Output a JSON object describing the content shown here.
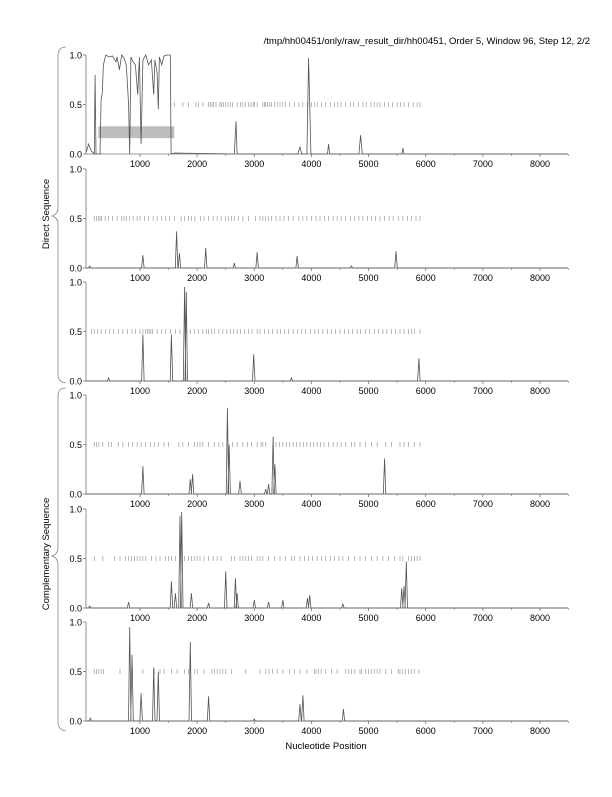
{
  "chart_data": {
    "type": "line",
    "title": "/tmp/hh00451/only/raw_result_dir/hh00451, Order 5, Window 96, Step 12, 2/2",
    "xlabel": "Nucleotide Position",
    "group_labels": [
      "Direct Sequence",
      "Complementary Sequence"
    ],
    "xlim": [
      55,
      8490
    ],
    "ylim": [
      0,
      1
    ],
    "x_ticks": [
      1000,
      2000,
      3000,
      4000,
      5000,
      6000,
      7000,
      8000
    ],
    "x_tick_labels": [
      "1000",
      "2000",
      "3000",
      "4000",
      "5000",
      "6000",
      "7000",
      "8000"
    ],
    "y_ticks": [
      0,
      0.5,
      1
    ],
    "y_tick_labels": [
      "0.0",
      "0.5",
      "1.0"
    ],
    "colors": {
      "line": "#555555",
      "ticks": "#999999",
      "region": "#bdbdbd",
      "axis": "#777777"
    },
    "panels": [
      {
        "name": "direct-frame-1",
        "curve": [
          [
            60,
            0.02
          ],
          [
            100,
            0.1
          ],
          [
            150,
            0.03
          ],
          [
            200,
            0.0
          ],
          [
            215,
            0.8
          ],
          [
            230,
            0.0
          ],
          [
            300,
            0.0
          ],
          [
            320,
            0.55
          ],
          [
            340,
            0.62
          ],
          [
            360,
            0.9
          ],
          [
            400,
            1.0
          ],
          [
            460,
            0.98
          ],
          [
            520,
            0.99
          ],
          [
            580,
            0.93
          ],
          [
            600,
            0.98
          ],
          [
            640,
            0.85
          ],
          [
            680,
            1.0
          ],
          [
            720,
            0.97
          ],
          [
            760,
            0.9
          ],
          [
            800,
            0.5
          ],
          [
            820,
            0.0
          ],
          [
            840,
            0.98
          ],
          [
            880,
            0.93
          ],
          [
            920,
            0.9
          ],
          [
            960,
            0.6
          ],
          [
            990,
            0.98
          ],
          [
            1020,
            0.1
          ],
          [
            1050,
            0.95
          ],
          [
            1100,
            1.0
          ],
          [
            1150,
            0.9
          ],
          [
            1200,
            0.95
          ],
          [
            1240,
            0.6
          ],
          [
            1260,
            0.95
          ],
          [
            1300,
            0.82
          ],
          [
            1320,
            0.45
          ],
          [
            1340,
            0.98
          ],
          [
            1380,
            0.9
          ],
          [
            1420,
            0.99
          ],
          [
            1480,
            1.0
          ],
          [
            1530,
            1.0
          ],
          [
            1545,
            0.0
          ],
          [
            1600,
            0.01
          ],
          [
            2650,
            0.0
          ],
          [
            2680,
            0.33
          ],
          [
            2700,
            0.0
          ],
          [
            3760,
            0.0
          ],
          [
            3800,
            0.07
          ],
          [
            3830,
            0.0
          ],
          [
            3920,
            0.0
          ],
          [
            3950,
            0.97
          ],
          [
            3990,
            0.0
          ],
          [
            4280,
            0.0
          ],
          [
            4300,
            0.1
          ],
          [
            4320,
            0.0
          ],
          [
            4830,
            0.0
          ],
          [
            4860,
            0.19
          ],
          [
            4890,
            0.0
          ],
          [
            5580,
            0.0
          ],
          [
            5600,
            0.06
          ],
          [
            5620,
            0.0
          ],
          [
            8490,
            0.0
          ]
        ],
        "peaks": [],
        "region": [
          270,
          1600,
          0.16,
          0.28
        ],
        "ticks": [
          1600,
          1750,
          1850,
          1980,
          2020,
          2100,
          2200,
          2230,
          2260,
          2290,
          2330,
          2400,
          2430,
          2460,
          2500,
          2540,
          2580,
          2620,
          2700,
          2760,
          2800,
          2840,
          2900,
          2940,
          2980,
          3000,
          3050,
          3150,
          3180,
          3200,
          3230,
          3270,
          3300,
          3350,
          3400,
          3450,
          3500,
          3550,
          3620,
          3700,
          3780,
          3850,
          3930,
          4000,
          4050,
          4100,
          4180,
          4250,
          4330,
          4400,
          4460,
          4520,
          4600,
          4680,
          4740,
          4820,
          4900,
          4960,
          5040,
          5100,
          5150,
          5200,
          5280,
          5350,
          5420,
          5500,
          5560,
          5620,
          5700,
          5780,
          5850,
          5900
        ]
      },
      {
        "name": "direct-frame-2",
        "curve": [],
        "peaks": [
          [
            120,
            0.02
          ],
          [
            1050,
            0.13
          ],
          [
            1640,
            0.37
          ],
          [
            1690,
            0.15
          ],
          [
            2150,
            0.2
          ],
          [
            2650,
            0.05
          ],
          [
            3050,
            0.16
          ],
          [
            3750,
            0.12
          ],
          [
            4700,
            0.02
          ],
          [
            5480,
            0.17
          ]
        ],
        "ticks": [
          200,
          240,
          270,
          300,
          330,
          390,
          450,
          520,
          600,
          680,
          720,
          760,
          820,
          880,
          950,
          1000,
          1080,
          1150,
          1230,
          1300,
          1380,
          1450,
          1520,
          1600,
          1720,
          1780,
          1850,
          1900,
          1960,
          2060,
          2120,
          2200,
          2280,
          2350,
          2420,
          2500,
          2550,
          2600,
          2650,
          2720,
          2800,
          2900,
          3020,
          3100,
          3150,
          3200,
          3250,
          3300,
          3380,
          3450,
          3520,
          3600,
          3680,
          3780,
          3850,
          3920,
          4000,
          4080,
          4150,
          4230,
          4300,
          4380,
          4450,
          4520,
          4600,
          4680,
          4750,
          4830,
          4900,
          4980,
          5050,
          5120,
          5200,
          5280,
          5360,
          5430,
          5520,
          5600,
          5680,
          5750,
          5830,
          5900
        ]
      },
      {
        "name": "direct-frame-3",
        "curve": [],
        "peaks": [
          [
            450,
            0.03
          ],
          [
            1050,
            0.47
          ],
          [
            1550,
            0.47
          ],
          [
            1780,
            0.95
          ],
          [
            1810,
            0.9
          ],
          [
            2990,
            0.27
          ],
          [
            3650,
            0.03
          ],
          [
            5880,
            0.23
          ]
        ],
        "ticks": [
          150,
          200,
          260,
          320,
          400,
          470,
          540,
          620,
          700,
          780,
          860,
          920,
          1000,
          1050,
          1100,
          1130,
          1160,
          1190,
          1220,
          1300,
          1380,
          1450,
          1530,
          1620,
          1700,
          1800,
          1880,
          1950,
          2020,
          2100,
          2160,
          2200,
          2250,
          2300,
          2380,
          2450,
          2520,
          2580,
          2640,
          2700,
          2760,
          2830,
          2900,
          2960,
          3050,
          3100,
          3180,
          3250,
          3320,
          3400,
          3460,
          3530,
          3600,
          3680,
          3760,
          3830,
          3900,
          3980,
          4060,
          4120,
          4200,
          4280,
          4350,
          4420,
          4500,
          4580,
          4650,
          4720,
          4800,
          4860,
          4950,
          5020,
          5100,
          5170,
          5250,
          5320,
          5400,
          5470,
          5550,
          5620,
          5700,
          5750,
          5800,
          5900
        ]
      },
      {
        "name": "complementary-frame-1",
        "curve": [],
        "peaks": [
          [
            1050,
            0.28
          ],
          [
            1880,
            0.15
          ],
          [
            1920,
            0.2
          ],
          [
            2530,
            0.87
          ],
          [
            2560,
            0.5
          ],
          [
            2750,
            0.13
          ],
          [
            3200,
            0.05
          ],
          [
            3250,
            0.1
          ],
          [
            3330,
            0.58
          ],
          [
            3360,
            0.3
          ],
          [
            5280,
            0.36
          ]
        ],
        "ticks": [
          200,
          240,
          280,
          350,
          450,
          500,
          620,
          700,
          800,
          870,
          950,
          1020,
          1100,
          1180,
          1250,
          1320,
          1420,
          1500,
          1680,
          1750,
          1850,
          1950,
          2000,
          2050,
          2100,
          2200,
          2300,
          2380,
          2450,
          2620,
          2700,
          2800,
          2880,
          2950,
          3050,
          3120,
          3150,
          3200,
          3380,
          3440,
          3500,
          3560,
          3620,
          3680,
          3740,
          3800,
          3860,
          3920,
          3980,
          4040,
          4100,
          4160,
          4220,
          4300,
          4380,
          4450,
          4520,
          4600,
          4700,
          4760,
          4850,
          4950,
          5050,
          5150,
          5300,
          5400,
          5550,
          5620,
          5700,
          5800,
          5900
        ]
      },
      {
        "name": "complementary-frame-2",
        "curve": [],
        "peaks": [
          [
            120,
            0.02
          ],
          [
            800,
            0.06
          ],
          [
            1550,
            0.27
          ],
          [
            1620,
            0.15
          ],
          [
            1700,
            0.93
          ],
          [
            1730,
            0.97
          ],
          [
            1900,
            0.15
          ],
          [
            2200,
            0.05
          ],
          [
            2500,
            0.37
          ],
          [
            2670,
            0.3
          ],
          [
            2700,
            0.15
          ],
          [
            3000,
            0.08
          ],
          [
            3250,
            0.06
          ],
          [
            3500,
            0.08
          ],
          [
            3930,
            0.1
          ],
          [
            3970,
            0.13
          ],
          [
            4550,
            0.04
          ],
          [
            5580,
            0.2
          ],
          [
            5620,
            0.22
          ],
          [
            5660,
            0.47
          ]
        ],
        "ticks": [
          200,
          350,
          550,
          650,
          750,
          800,
          850,
          900,
          950,
          1000,
          1050,
          1100,
          1200,
          1280,
          1350,
          1450,
          1500,
          1550,
          1620,
          1780,
          1850,
          1900,
          1950,
          2000,
          2050,
          2120,
          2200,
          2280,
          2350,
          2420,
          2600,
          2650,
          2750,
          2800,
          2850,
          2900,
          2950,
          3050,
          3100,
          3150,
          3250,
          3350,
          3450,
          3550,
          3650,
          3700,
          3800,
          3880,
          3950,
          4020,
          4100,
          4180,
          4250,
          4330,
          4400,
          4480,
          4550,
          4650,
          4750,
          4850,
          4950,
          5050,
          5150,
          5250,
          5350,
          5450,
          5550,
          5600,
          5700,
          5750,
          5800,
          5850,
          5900
        ]
      },
      {
        "name": "complementary-frame-3",
        "curve": [],
        "peaks": [
          [
            130,
            0.03
          ],
          [
            820,
            0.95
          ],
          [
            860,
            0.67
          ],
          [
            1020,
            0.28
          ],
          [
            1240,
            0.54
          ],
          [
            1320,
            0.5
          ],
          [
            1880,
            0.8
          ],
          [
            2200,
            0.25
          ],
          [
            3000,
            0.02
          ],
          [
            3800,
            0.17
          ],
          [
            3850,
            0.26
          ],
          [
            4560,
            0.12
          ]
        ],
        "ticks": [
          200,
          240,
          280,
          320,
          360,
          650,
          870,
          1050,
          1250,
          1350,
          1420,
          1550,
          1650,
          1780,
          1850,
          1950,
          2000,
          2120,
          2260,
          2300,
          2350,
          2400,
          2450,
          2500,
          2600,
          2850,
          3100,
          3200,
          3260,
          3320,
          3400,
          3500,
          3620,
          3700,
          3800,
          3920,
          4050,
          4080,
          4120,
          4170,
          4250,
          4350,
          4450,
          4600,
          4650,
          4700,
          4760,
          4850,
          4880,
          4950,
          5000,
          5050,
          5100,
          5150,
          5200,
          5300,
          5400,
          5520,
          5550,
          5600,
          5650,
          5700,
          5750,
          5800,
          5880
        ]
      }
    ]
  }
}
